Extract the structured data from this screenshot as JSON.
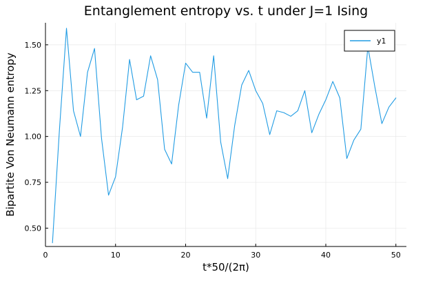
{
  "chart_data": {
    "type": "line",
    "title": "Entanglement entropy vs. t under J=1 Ising",
    "xlabel": "t*50/(2π)",
    "ylabel": "Bipartite Von Neumann entropy",
    "xlim": [
      0,
      51.5
    ],
    "ylim": [
      0.4,
      1.62
    ],
    "x_ticks": [
      0,
      10,
      20,
      30,
      40,
      50
    ],
    "x_tick_labels": [
      "0",
      "10",
      "20",
      "30",
      "40",
      "50"
    ],
    "y_ticks": [
      0.5,
      0.75,
      1.0,
      1.25,
      1.5
    ],
    "y_tick_labels": [
      "0.50",
      "0.75",
      "1.00",
      "1.25",
      "1.50"
    ],
    "grid": true,
    "legend": {
      "placement": "top-right",
      "entries": [
        "y1"
      ]
    },
    "series": [
      {
        "name": "y1",
        "color": "#1f9be3",
        "x": [
          1,
          2,
          3,
          4,
          5,
          6,
          7,
          8,
          9,
          10,
          11,
          12,
          13,
          14,
          15,
          16,
          17,
          18,
          19,
          20,
          21,
          22,
          23,
          24,
          25,
          26,
          27,
          28,
          29,
          30,
          31,
          32,
          33,
          34,
          35,
          36,
          37,
          38,
          39,
          40,
          41,
          42,
          43,
          44,
          45,
          46,
          47,
          48,
          49,
          50
        ],
        "y": [
          0.42,
          1.04,
          1.59,
          1.14,
          1.0,
          1.35,
          1.48,
          0.99,
          0.68,
          0.78,
          1.05,
          1.42,
          1.2,
          1.22,
          1.44,
          1.31,
          0.93,
          0.85,
          1.17,
          1.4,
          1.35,
          1.35,
          1.1,
          1.44,
          0.97,
          0.77,
          1.06,
          1.28,
          1.36,
          1.25,
          1.18,
          1.01,
          1.14,
          1.13,
          1.11,
          1.14,
          1.25,
          1.02,
          1.12,
          1.2,
          1.3,
          1.21,
          0.88,
          0.98,
          1.04,
          1.49,
          1.27,
          1.07,
          1.16,
          1.21
        ]
      }
    ]
  }
}
